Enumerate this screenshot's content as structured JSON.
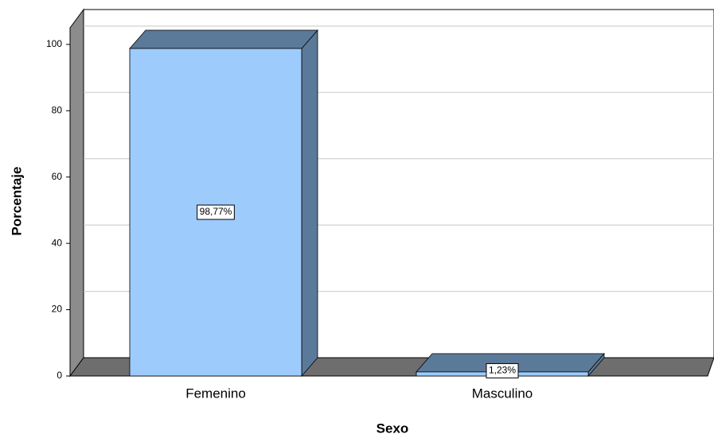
{
  "chart_data": {
    "type": "bar3d",
    "x_label": "Sexo",
    "y_label": "Porcentaje",
    "categories": [
      "Femenino",
      "Masculino"
    ],
    "values": [
      98.77,
      1.23
    ],
    "value_labels": [
      "98,77%",
      "1,23%"
    ],
    "color": "#9ccbfc",
    "ylim": [
      0,
      105
    ],
    "yticks": [
      0,
      20,
      40,
      60,
      80,
      100
    ],
    "grid": true
  }
}
